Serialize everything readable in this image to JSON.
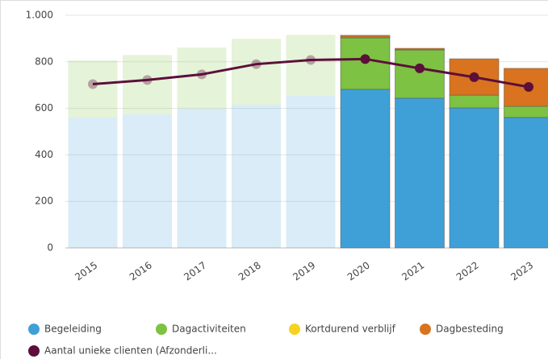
{
  "chart_data": {
    "type": "stacked_bar_line",
    "categories": [
      "2015",
      "2016",
      "2017",
      "2018",
      "2019",
      "2020",
      "2021",
      "2022",
      "2023"
    ],
    "series": [
      {
        "name": "Begeleiding",
        "color": "#3fa0d8",
        "values": [
          560,
          574,
          599,
          616,
          654,
          682,
          644,
          602,
          561
        ]
      },
      {
        "name": "Dagactiviteiten",
        "color": "#7dc242",
        "values": [
          246,
          254,
          261,
          282,
          261,
          221,
          207,
          55,
          48
        ]
      },
      {
        "name": "Kortdurend verblijf",
        "color": "#f6d31e",
        "values": [
          0,
          2,
          2,
          2,
          2,
          3,
          2,
          0,
          0
        ]
      },
      {
        "name": "Dagbesteding",
        "color": "#d9731f",
        "values": [
          0,
          0,
          0,
          0,
          0,
          8,
          5,
          156,
          163
        ]
      },
      {
        "name": "Aantal unieke clienten (Afzonderli...",
        "color": "#5c0f3a",
        "type": "line",
        "values": [
          704,
          722,
          746,
          790,
          808,
          812,
          772,
          734,
          692
        ]
      }
    ],
    "bar_opacity": [
      0.2,
      0.2,
      0.2,
      0.2,
      0.2,
      1,
      1,
      1,
      1
    ],
    "ylim": [
      0,
      1000
    ],
    "yticks": [
      0,
      200,
      400,
      600,
      800,
      {
        "value": 1000,
        "label": "1.000"
      }
    ],
    "grid": true
  }
}
